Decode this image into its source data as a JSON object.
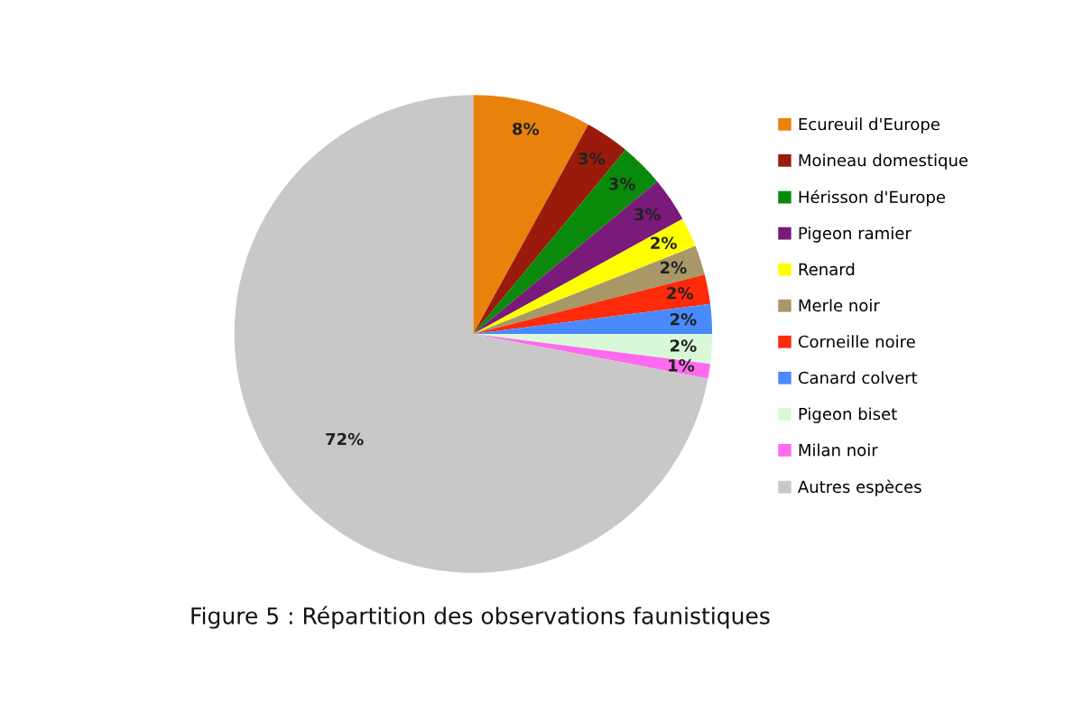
{
  "chart_data": {
    "type": "pie",
    "categories": [
      "Ecureuil d'Europe",
      "Moineau domestique",
      "Hérisson d'Europe",
      "Pigeon ramier",
      "Renard",
      "Merle noir",
      "Corneille noire",
      "Canard colvert",
      "Pigeon biset",
      "Milan noir",
      "Autres espèces"
    ],
    "values": [
      8,
      3,
      3,
      3,
      2,
      2,
      2,
      2,
      2,
      1,
      72
    ],
    "colors": [
      "#e8820c",
      "#9a1a0c",
      "#0a8a0a",
      "#7a1a7a",
      "#ffff00",
      "#a89868",
      "#ff2a0a",
      "#4a8aff",
      "#d8f8d8",
      "#ff6aee",
      "#c8c8c8"
    ],
    "value_labels": [
      "8%",
      "3%",
      "3%",
      "3%",
      "2%",
      "2%",
      "2%",
      "2%",
      "2%",
      "1%",
      "72%"
    ],
    "legend": "right",
    "annotations": [
      "Figure 5 : Répartition des observations faunistiques"
    ]
  }
}
